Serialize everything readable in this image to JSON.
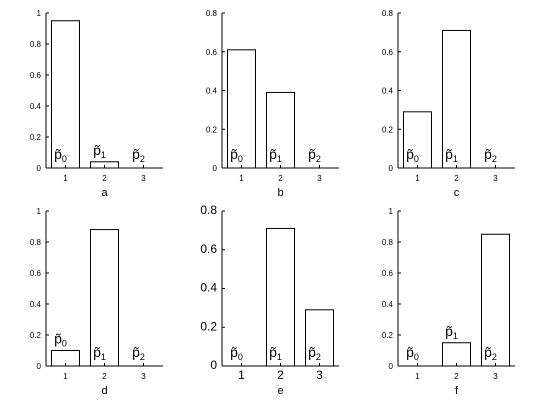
{
  "chart_data": [
    {
      "type": "bar",
      "xlabel": "a",
      "categories": [
        "1",
        "2",
        "3"
      ],
      "values": [
        0.95,
        0.04,
        0.0
      ],
      "labels": [
        "p̃0",
        "p̃1",
        "p̃2"
      ],
      "ylim": [
        0,
        1
      ],
      "yticks": [
        "0",
        "0.2",
        "0.4",
        "0.6",
        "0.8",
        "1"
      ],
      "grid": false
    },
    {
      "type": "bar",
      "xlabel": "b",
      "categories": [
        "1",
        "2",
        "3"
      ],
      "values": [
        0.61,
        0.39,
        0.0
      ],
      "labels": [
        "p̃0",
        "p̃1",
        "p̃2"
      ],
      "ylim": [
        0,
        0.8
      ],
      "yticks": [
        "0",
        "0.2",
        "0.4",
        "0.6",
        "0.8"
      ],
      "grid": false
    },
    {
      "type": "bar",
      "xlabel": "c",
      "categories": [
        "1",
        "2",
        "3"
      ],
      "values": [
        0.29,
        0.71,
        0.0
      ],
      "labels": [
        "p̃0",
        "p̃1",
        "p̃2"
      ],
      "ylim": [
        0,
        0.8
      ],
      "yticks": [
        "0",
        "0.2",
        "0.4",
        "0.6",
        "0.8"
      ],
      "grid": false
    },
    {
      "type": "bar",
      "xlabel": "d",
      "categories": [
        "1",
        "2",
        "3"
      ],
      "values": [
        0.1,
        0.88,
        0.0
      ],
      "labels": [
        "p̃0",
        "p̃1",
        "p̃2"
      ],
      "ylim": [
        0,
        1
      ],
      "yticks": [
        "0",
        "0.2",
        "0.4",
        "0.6",
        "0.8",
        "1"
      ],
      "grid": false
    },
    {
      "type": "bar",
      "xlabel": "e",
      "categories": [
        "1",
        "2",
        "3"
      ],
      "values": [
        0.0,
        0.71,
        0.29
      ],
      "labels": [
        "p̃0",
        "p̃1",
        "p̃2"
      ],
      "ylim": [
        0,
        0.8
      ],
      "yticks": [
        "0",
        "0.2",
        "0.4",
        "0.6",
        "0.8"
      ],
      "grid": false
    },
    {
      "type": "bar",
      "xlabel": "f",
      "categories": [
        "1",
        "2",
        "3"
      ],
      "values": [
        0.0,
        0.15,
        0.85
      ],
      "labels": [
        "p̃0",
        "p̃1",
        "p̃2"
      ],
      "ylim": [
        0,
        1
      ],
      "yticks": [
        "0",
        "0.2",
        "0.4",
        "0.6",
        "0.8",
        "1"
      ],
      "grid": false
    }
  ]
}
